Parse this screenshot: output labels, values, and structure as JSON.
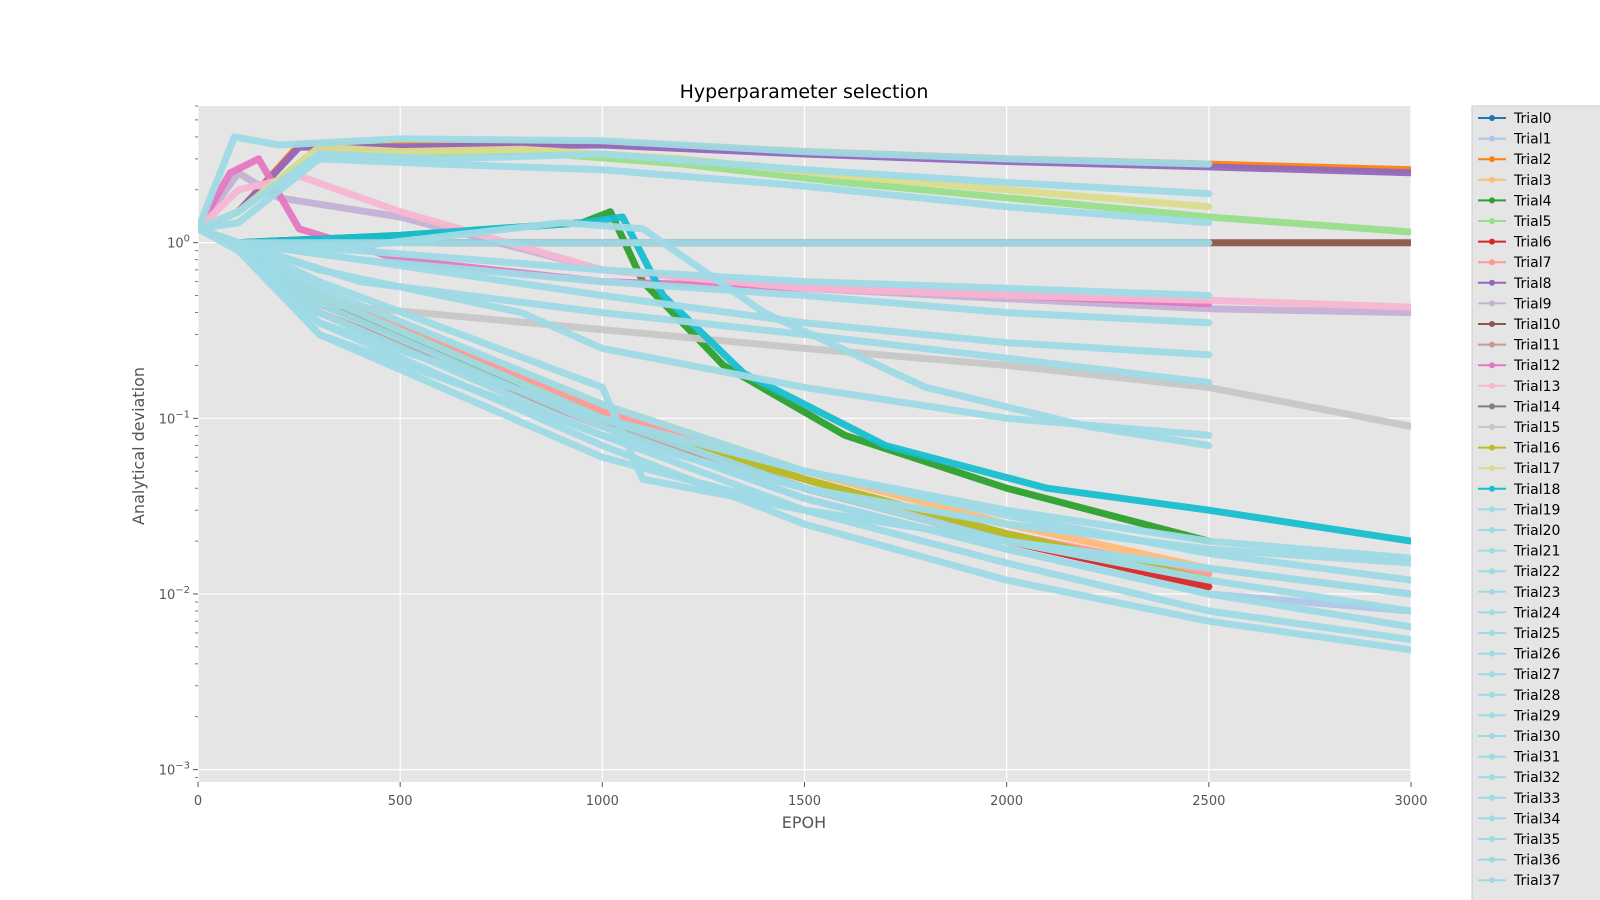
{
  "chart_data": {
    "type": "line",
    "title": "Hyperparameter selection",
    "xlabel": "EPOH",
    "ylabel": "Analytical deviation",
    "xlim": [
      0,
      3000
    ],
    "ylim": [
      0.00085,
      6.0
    ],
    "yscale": "log",
    "grid": true,
    "legend_position": "right (outside)",
    "x_ticks": [
      {
        "value": 0,
        "label": "0"
      },
      {
        "value": 500,
        "label": "500"
      },
      {
        "value": 1000,
        "label": "1000"
      },
      {
        "value": 1500,
        "label": "1500"
      },
      {
        "value": 2000,
        "label": "2000"
      },
      {
        "value": 2500,
        "label": "2500"
      },
      {
        "value": 3000,
        "label": "3000"
      }
    ],
    "y_ticks": [
      {
        "value": 0.001,
        "base": "10",
        "exp": "−3"
      },
      {
        "value": 0.01,
        "base": "10",
        "exp": "−2"
      },
      {
        "value": 0.1,
        "base": "10",
        "exp": "−1"
      },
      {
        "value": 1,
        "base": "10",
        "exp": "0"
      }
    ],
    "series": [
      {
        "name": "Trial0",
        "color": "#1f77b4",
        "x": [
          0,
          100,
          300,
          1000,
          1500,
          2000,
          2500
        ],
        "y": [
          1.2,
          1.0,
          0.5,
          0.1,
          0.04,
          0.02,
          0.012
        ]
      },
      {
        "name": "Trial1",
        "color": "#aec7e8",
        "x": [
          0,
          100,
          300,
          1000,
          1500,
          2000,
          2500,
          3000
        ],
        "y": [
          1.2,
          1.0,
          0.4,
          0.09,
          0.035,
          0.018,
          0.01,
          0.008
        ]
      },
      {
        "name": "Trial2",
        "color": "#ff7f0e",
        "x": [
          0,
          100,
          250,
          500,
          1000,
          1500,
          2000,
          2500,
          3000
        ],
        "y": [
          1.2,
          1.5,
          3.6,
          3.6,
          3.7,
          3.3,
          3.0,
          2.8,
          2.6
        ]
      },
      {
        "name": "Trial3",
        "color": "#ffbb78",
        "x": [
          0,
          100,
          300,
          1000,
          1500,
          2000,
          2500,
          3000
        ],
        "y": [
          1.2,
          1.0,
          0.5,
          0.12,
          0.05,
          0.025,
          0.014,
          0.01
        ]
      },
      {
        "name": "Trial4",
        "color": "#2ca02c",
        "x": [
          0,
          100,
          500,
          950,
          1020,
          1100,
          1300,
          1600,
          2000,
          2500
        ],
        "y": [
          1.2,
          1.0,
          1.1,
          1.3,
          1.5,
          0.6,
          0.2,
          0.08,
          0.04,
          0.02
        ]
      },
      {
        "name": "Trial5",
        "color": "#98df8a",
        "x": [
          0,
          100,
          300,
          500,
          800,
          1200,
          1600,
          2000,
          2500,
          3000
        ],
        "y": [
          1.2,
          1.5,
          3.5,
          3.2,
          3.3,
          2.8,
          2.2,
          1.8,
          1.4,
          1.15
        ]
      },
      {
        "name": "Trial6",
        "color": "#d62728",
        "x": [
          0,
          100,
          300,
          1000,
          1500,
          2000,
          2500
        ],
        "y": [
          1.2,
          1.0,
          0.45,
          0.1,
          0.04,
          0.02,
          0.011
        ]
      },
      {
        "name": "Trial7",
        "color": "#ff9896",
        "x": [
          0,
          100,
          300,
          1000,
          1500,
          2000,
          2500
        ],
        "y": [
          1.2,
          1.0,
          0.5,
          0.11,
          0.045,
          0.022,
          0.013
        ]
      },
      {
        "name": "Trial8",
        "color": "#9467bd",
        "x": [
          0,
          100,
          250,
          500,
          1000,
          1500,
          2000,
          2500,
          3000
        ],
        "y": [
          1.2,
          1.5,
          3.5,
          3.5,
          3.6,
          3.2,
          2.9,
          2.7,
          2.5
        ]
      },
      {
        "name": "Trial9",
        "color": "#c5b0d5",
        "x": [
          0,
          100,
          200,
          500,
          1000,
          1500,
          2000,
          2500,
          3000
        ],
        "y": [
          1.2,
          2.5,
          1.8,
          1.4,
          0.7,
          0.55,
          0.48,
          0.42,
          0.4
        ]
      },
      {
        "name": "Trial10",
        "color": "#8c564b",
        "x": [
          0,
          100,
          300,
          600,
          1000,
          1500,
          2000,
          2500,
          3000
        ],
        "y": [
          1.2,
          1.0,
          1.05,
          1.0,
          1.0,
          1.0,
          1.0,
          1.0,
          1.0
        ]
      },
      {
        "name": "Trial11",
        "color": "#c49c94",
        "x": [
          0,
          100,
          300,
          1000,
          1500,
          2000,
          2500
        ],
        "y": [
          1.2,
          1.0,
          0.4,
          0.09,
          0.04,
          0.02,
          0.012
        ]
      },
      {
        "name": "Trial12",
        "color": "#e377c2",
        "x": [
          0,
          80,
          150,
          250,
          500,
          1000,
          1500,
          2000,
          2500
        ],
        "y": [
          1.2,
          2.5,
          3.0,
          1.2,
          0.8,
          0.6,
          0.55,
          0.5,
          0.45
        ]
      },
      {
        "name": "Trial13",
        "color": "#f7b6d2",
        "x": [
          0,
          100,
          250,
          500,
          1000,
          1500,
          2000,
          2500,
          3000
        ],
        "y": [
          1.2,
          2.0,
          2.4,
          1.5,
          0.7,
          0.55,
          0.5,
          0.47,
          0.43
        ]
      },
      {
        "name": "Trial14",
        "color": "#7f7f7f",
        "x": [
          0,
          100,
          300,
          1000,
          1500,
          2000,
          2500
        ],
        "y": [
          1.2,
          1.0,
          0.45,
          0.1,
          0.045,
          0.022,
          0.012
        ]
      },
      {
        "name": "Trial15",
        "color": "#c7c7c7",
        "x": [
          0,
          100,
          300,
          1000,
          1500,
          2000,
          2500,
          3000
        ],
        "y": [
          1.2,
          1.0,
          0.45,
          0.32,
          0.25,
          0.2,
          0.15,
          0.09
        ]
      },
      {
        "name": "Trial16",
        "color": "#bcbd22",
        "x": [
          0,
          100,
          300,
          1000,
          1500,
          2000,
          2500
        ],
        "y": [
          1.2,
          1.0,
          0.5,
          0.1,
          0.045,
          0.022,
          0.012
        ]
      },
      {
        "name": "Trial17",
        "color": "#dbdb8d",
        "x": [
          0,
          100,
          300,
          500,
          800,
          1200,
          1600,
          2000,
          2500
        ],
        "y": [
          1.2,
          1.5,
          3.5,
          3.3,
          3.4,
          3.0,
          2.4,
          2.0,
          1.6
        ]
      },
      {
        "name": "Trial18",
        "color": "#17becf",
        "x": [
          0,
          100,
          500,
          950,
          1050,
          1150,
          1350,
          1700,
          2100,
          2500,
          3000
        ],
        "y": [
          1.2,
          1.0,
          1.1,
          1.3,
          1.4,
          0.5,
          0.18,
          0.07,
          0.04,
          0.03,
          0.02
        ]
      },
      {
        "name": "Trial19",
        "color": "#9edae5",
        "x": [
          0,
          90,
          200,
          500,
          1000,
          1500,
          2000,
          2500
        ],
        "y": [
          1.2,
          4.0,
          3.6,
          3.9,
          3.8,
          3.3,
          3.0,
          2.8
        ]
      },
      {
        "name": "Trial20",
        "color": "#9edae5",
        "x": [
          0,
          100,
          300,
          600,
          1000,
          1500,
          2000,
          2500
        ],
        "y": [
          1.2,
          1.5,
          3.2,
          3.0,
          3.2,
          2.6,
          2.2,
          1.9
        ]
      },
      {
        "name": "Trial21",
        "color": "#9edae5",
        "x": [
          0,
          100,
          300,
          600,
          1000,
          1500,
          2000,
          2500
        ],
        "y": [
          1.2,
          1.3,
          3.0,
          2.8,
          2.6,
          2.1,
          1.6,
          1.3
        ]
      },
      {
        "name": "Trial22",
        "color": "#9edae5",
        "x": [
          0,
          100,
          300,
          600,
          1000,
          1500,
          2000,
          2500
        ],
        "y": [
          1.2,
          1.0,
          1.0,
          1.0,
          1.0,
          1.0,
          1.0,
          1.0
        ]
      },
      {
        "name": "Trial23",
        "color": "#9edae5",
        "x": [
          0,
          100,
          300,
          1000,
          1500,
          2000,
          2500,
          3000
        ],
        "y": [
          1.2,
          1.0,
          0.35,
          0.07,
          0.025,
          0.012,
          0.007,
          0.0048
        ]
      },
      {
        "name": "Trial24",
        "color": "#9edae5",
        "x": [
          0,
          100,
          300,
          1000,
          1500,
          2000,
          2500,
          3000
        ],
        "y": [
          1.2,
          1.0,
          0.4,
          0.08,
          0.03,
          0.015,
          0.008,
          0.0055
        ]
      },
      {
        "name": "Trial25",
        "color": "#9edae5",
        "x": [
          0,
          100,
          300,
          1000,
          1500,
          2000,
          2500,
          3000
        ],
        "y": [
          1.2,
          1.0,
          0.45,
          0.09,
          0.035,
          0.018,
          0.01,
          0.0065
        ]
      },
      {
        "name": "Trial26",
        "color": "#9edae5",
        "x": [
          0,
          100,
          300,
          1000,
          1500,
          2000,
          2500,
          3000
        ],
        "y": [
          1.2,
          1.0,
          0.5,
          0.1,
          0.04,
          0.02,
          0.012,
          0.008
        ]
      },
      {
        "name": "Trial27",
        "color": "#9edae5",
        "x": [
          0,
          100,
          300,
          1000,
          1500,
          2000,
          2500,
          3000
        ],
        "y": [
          1.2,
          0.9,
          0.3,
          0.06,
          0.03,
          0.02,
          0.014,
          0.01
        ]
      },
      {
        "name": "Trial28",
        "color": "#9edae5",
        "x": [
          0,
          100,
          300,
          1000,
          1500,
          2000,
          2500,
          3000
        ],
        "y": [
          1.2,
          1.0,
          0.55,
          0.12,
          0.05,
          0.028,
          0.017,
          0.012
        ]
      },
      {
        "name": "Trial29",
        "color": "#9edae5",
        "x": [
          0,
          100,
          400,
          1000,
          1500,
          2000,
          2500
        ],
        "y": [
          1.2,
          1.0,
          0.6,
          0.4,
          0.3,
          0.22,
          0.16
        ]
      },
      {
        "name": "Trial30",
        "color": "#9edae5",
        "x": [
          0,
          100,
          400,
          1000,
          1500,
          2000,
          2500
        ],
        "y": [
          1.2,
          1.0,
          0.8,
          0.6,
          0.5,
          0.4,
          0.35
        ]
      },
      {
        "name": "Trial31",
        "color": "#9edae5",
        "x": [
          0,
          100,
          400,
          1000,
          1500,
          2000,
          2500
        ],
        "y": [
          1.2,
          1.0,
          0.9,
          0.7,
          0.6,
          0.55,
          0.5
        ]
      },
      {
        "name": "Trial32",
        "color": "#9edae5",
        "x": [
          0,
          100,
          300,
          900,
          1100,
          1400,
          1800,
          2200,
          2500
        ],
        "y": [
          1.2,
          1.0,
          0.9,
          1.3,
          1.2,
          0.4,
          0.15,
          0.09,
          0.07
        ]
      },
      {
        "name": "Trial33",
        "color": "#9edae5",
        "x": [
          0,
          100,
          300,
          800,
          1000,
          1500,
          2000,
          2500
        ],
        "y": [
          1.2,
          1.0,
          0.7,
          0.4,
          0.25,
          0.15,
          0.1,
          0.08
        ]
      },
      {
        "name": "Trial34",
        "color": "#9edae5",
        "x": [
          0,
          100,
          300,
          1000,
          1100,
          1500,
          2000,
          2500,
          3000
        ],
        "y": [
          1.2,
          1.0,
          0.6,
          0.15,
          0.045,
          0.03,
          0.02,
          0.014,
          0.01
        ]
      },
      {
        "name": "Trial35",
        "color": "#9edae5",
        "x": [
          0,
          100,
          400,
          1000,
          1500,
          2000,
          2500
        ],
        "y": [
          1.2,
          1.0,
          0.8,
          0.5,
          0.35,
          0.27,
          0.23
        ]
      },
      {
        "name": "Trial36",
        "color": "#9edae5",
        "x": [
          0,
          100,
          300,
          1000,
          1500,
          2000,
          2500,
          3000
        ],
        "y": [
          1.2,
          1.0,
          0.3,
          0.08,
          0.04,
          0.025,
          0.018,
          0.015
        ]
      },
      {
        "name": "Trial37",
        "color": "#9edae5",
        "x": [
          0,
          100,
          300,
          1000,
          1500,
          2000,
          2500,
          3000
        ],
        "y": [
          1.2,
          1.0,
          0.35,
          0.1,
          0.05,
          0.03,
          0.02,
          0.016
        ]
      }
    ]
  }
}
